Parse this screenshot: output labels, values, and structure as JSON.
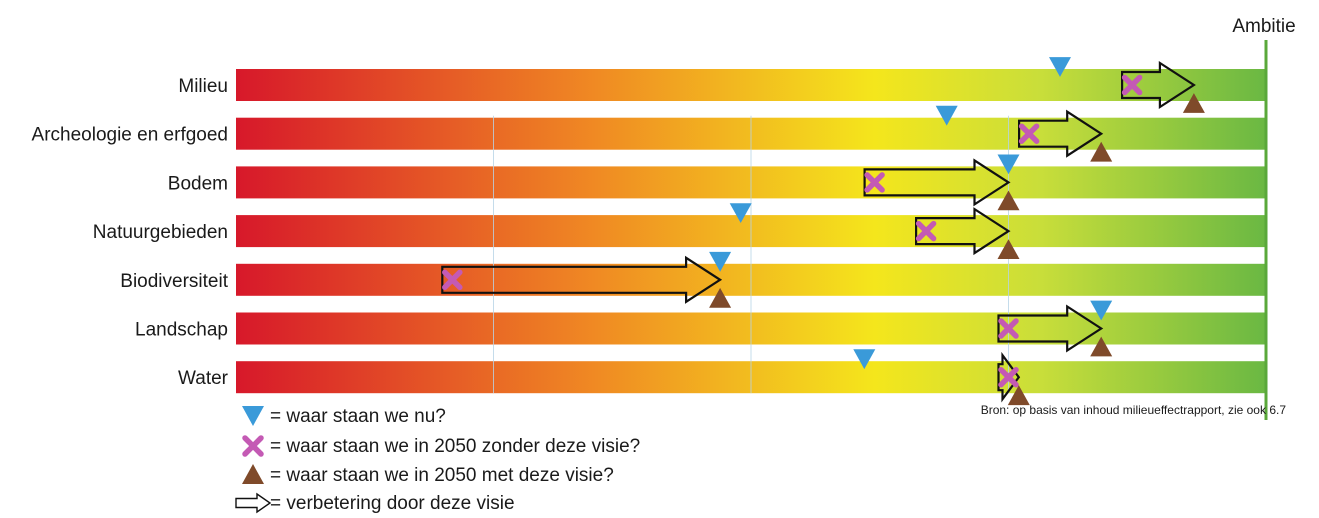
{
  "chart_data": {
    "type": "bar",
    "description_free": true,
    "ambition_label": "Ambitie",
    "source": "Bron: op basis van inhoud milieueffectrapport, zie ook 6.7",
    "scale": [
      0,
      100
    ],
    "categories": [
      "Milieu",
      "Archeologie en erfgoed",
      "Bodem",
      "Natuurgebieden",
      "Biodiversiteit",
      "Landschap",
      "Water"
    ],
    "series": [
      {
        "name": "= waar staan we nu?",
        "marker": "triangle-down",
        "color": "#3a9ad9",
        "values": [
          80,
          69,
          75,
          49,
          47,
          84,
          61
        ]
      },
      {
        "name": "= waar staan we in 2050 zonder deze visie?",
        "marker": "cross",
        "color": "#c45ab4",
        "values": [
          87,
          77,
          62,
          67,
          21,
          75,
          75
        ]
      },
      {
        "name": "= waar staan we in 2050 met deze visie?",
        "marker": "triangle-up",
        "color": "#7f4a2a",
        "values": [
          93,
          84,
          75,
          75,
          47,
          84,
          76
        ]
      }
    ],
    "arrow_legend": "= verbetering door deze visie",
    "gradient_colors": [
      "#d7182a",
      "#f08a23",
      "#f4e61c",
      "#c9de3a",
      "#6ab843"
    ],
    "ambition_line_color": "#5aa83a"
  }
}
